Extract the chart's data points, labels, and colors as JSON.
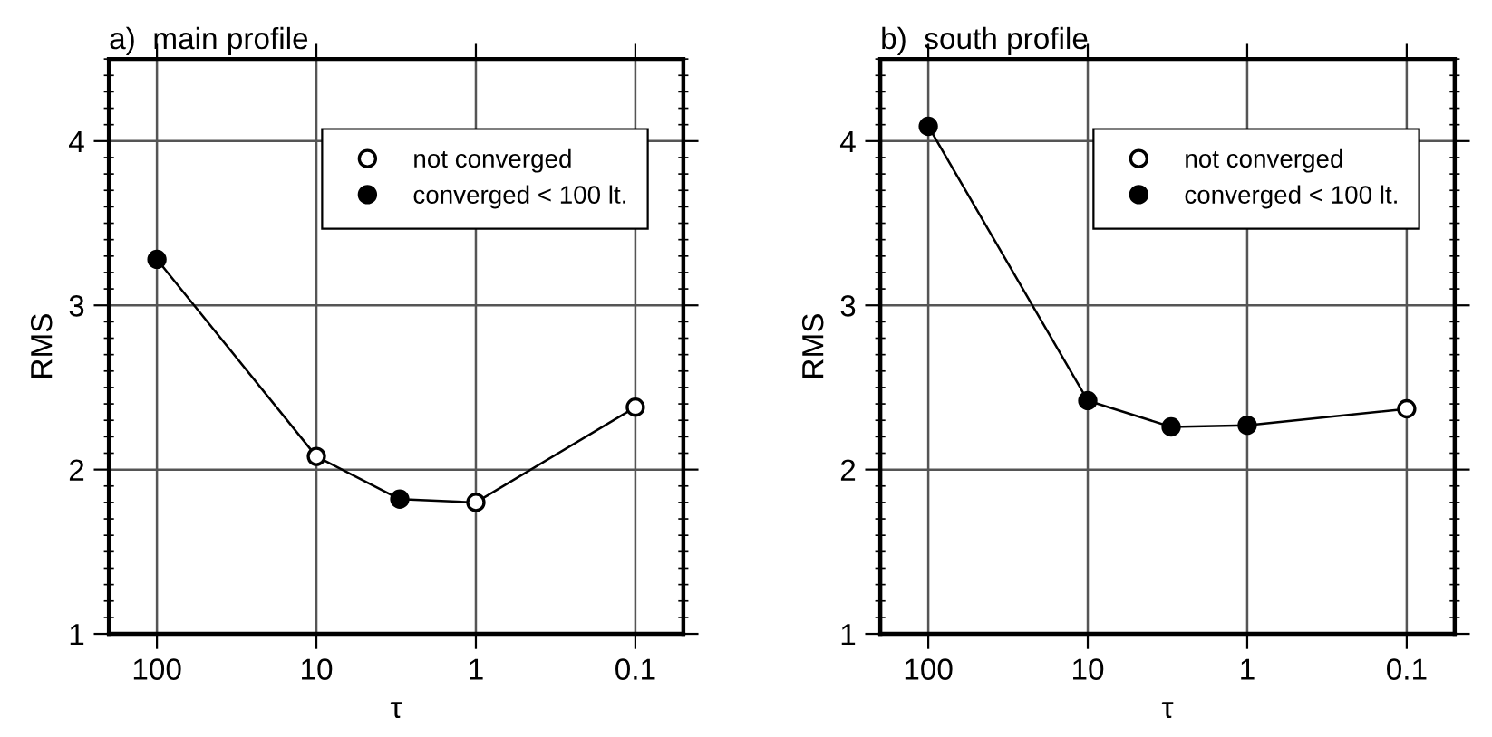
{
  "chart_data": [
    {
      "type": "line",
      "title": "a)  main profile",
      "xlabel": "τ",
      "ylabel": "RMS",
      "log": "x",
      "xlim": [
        200,
        0.05
      ],
      "xticks": [
        100,
        10,
        1,
        0.1
      ],
      "ylim": [
        1,
        4.5
      ],
      "yticks": [
        1,
        2,
        3,
        4
      ],
      "grid": true,
      "legend": "top right",
      "series": [
        {
          "x": [
            100,
            10,
            3,
            1,
            0.1
          ],
          "values": [
            3.28,
            2.08,
            1.82,
            1.8,
            2.38
          ],
          "color": "#000000"
        },
        {
          "type": "scatter",
          "name": "not converged",
          "x": [
            10,
            1,
            0.1
          ],
          "values": [
            2.08,
            1.8,
            2.38
          ],
          "color": "#ffffff",
          "marker": "circle"
        },
        {
          "type": "scatter",
          "name": "converged < 100 lt.",
          "x": [
            100,
            3
          ],
          "values": [
            3.28,
            1.82
          ],
          "color": "#000000",
          "marker": "circle"
        }
      ]
    },
    {
      "type": "line",
      "title": "b)  south profile",
      "xlabel": "τ",
      "ylabel": "RMS",
      "log": "x",
      "xlim": [
        200,
        0.05
      ],
      "xticks": [
        100,
        10,
        1,
        0.1
      ],
      "ylim": [
        1,
        4.5
      ],
      "yticks": [
        1,
        2,
        3,
        4
      ],
      "grid": true,
      "legend": "top right",
      "series": [
        {
          "x": [
            100,
            10,
            3,
            1,
            0.1
          ],
          "values": [
            4.09,
            2.42,
            2.26,
            2.27,
            2.37
          ],
          "color": "#000000"
        },
        {
          "type": "scatter",
          "name": "not converged",
          "x": [
            0.1
          ],
          "values": [
            2.37
          ],
          "color": "#ffffff",
          "marker": "circle"
        },
        {
          "type": "scatter",
          "name": "converged < 100 lt.",
          "x": [
            100,
            10,
            3,
            1
          ],
          "values": [
            4.09,
            2.42,
            2.26,
            2.27
          ],
          "color": "#000000",
          "marker": "circle"
        }
      ]
    }
  ]
}
